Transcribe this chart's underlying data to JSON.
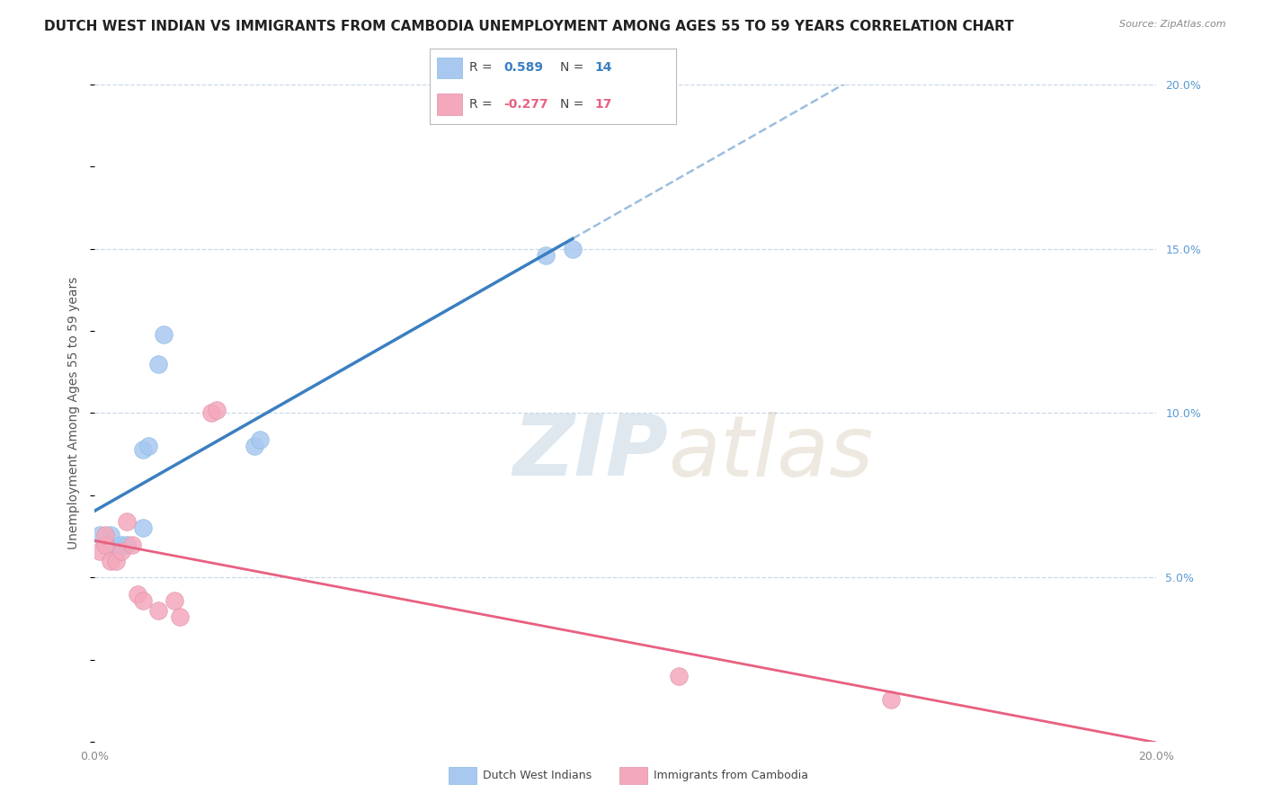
{
  "title": "DUTCH WEST INDIAN VS IMMIGRANTS FROM CAMBODIA UNEMPLOYMENT AMONG AGES 55 TO 59 YEARS CORRELATION CHART",
  "source": "Source: ZipAtlas.com",
  "ylabel": "Unemployment Among Ages 55 to 59 years",
  "xlim": [
    0.0,
    0.2
  ],
  "ylim": [
    0.0,
    0.2
  ],
  "blue_label": "Dutch West Indians",
  "pink_label": "Immigrants from Cambodia",
  "R_blue": 0.589,
  "N_blue": 14,
  "R_pink": -0.277,
  "N_pink": 17,
  "blue_color": "#A8C8F0",
  "pink_color": "#F4A8BC",
  "blue_line_color": "#3A7FC1",
  "pink_line_color": "#E86080",
  "blue_points": [
    [
      0.001,
      0.063
    ],
    [
      0.003,
      0.063
    ],
    [
      0.004,
      0.058
    ],
    [
      0.005,
      0.06
    ],
    [
      0.006,
      0.06
    ],
    [
      0.009,
      0.065
    ],
    [
      0.009,
      0.089
    ],
    [
      0.01,
      0.09
    ],
    [
      0.012,
      0.115
    ],
    [
      0.013,
      0.124
    ],
    [
      0.03,
      0.09
    ],
    [
      0.031,
      0.092
    ],
    [
      0.085,
      0.148
    ],
    [
      0.09,
      0.15
    ]
  ],
  "pink_points": [
    [
      0.001,
      0.058
    ],
    [
      0.002,
      0.06
    ],
    [
      0.002,
      0.063
    ],
    [
      0.003,
      0.055
    ],
    [
      0.004,
      0.055
    ],
    [
      0.005,
      0.058
    ],
    [
      0.006,
      0.067
    ],
    [
      0.007,
      0.06
    ],
    [
      0.008,
      0.045
    ],
    [
      0.009,
      0.043
    ],
    [
      0.012,
      0.04
    ],
    [
      0.015,
      0.043
    ],
    [
      0.016,
      0.038
    ],
    [
      0.022,
      0.1
    ],
    [
      0.023,
      0.101
    ],
    [
      0.11,
      0.02
    ],
    [
      0.15,
      0.013
    ]
  ],
  "watermark_zip": "ZIP",
  "watermark_atlas": "atlas",
  "background_color": "#FFFFFF",
  "grid_color": "#C8D8E8",
  "title_fontsize": 11,
  "axis_label_fontsize": 10,
  "tick_fontsize": 9,
  "legend_fontsize": 10
}
